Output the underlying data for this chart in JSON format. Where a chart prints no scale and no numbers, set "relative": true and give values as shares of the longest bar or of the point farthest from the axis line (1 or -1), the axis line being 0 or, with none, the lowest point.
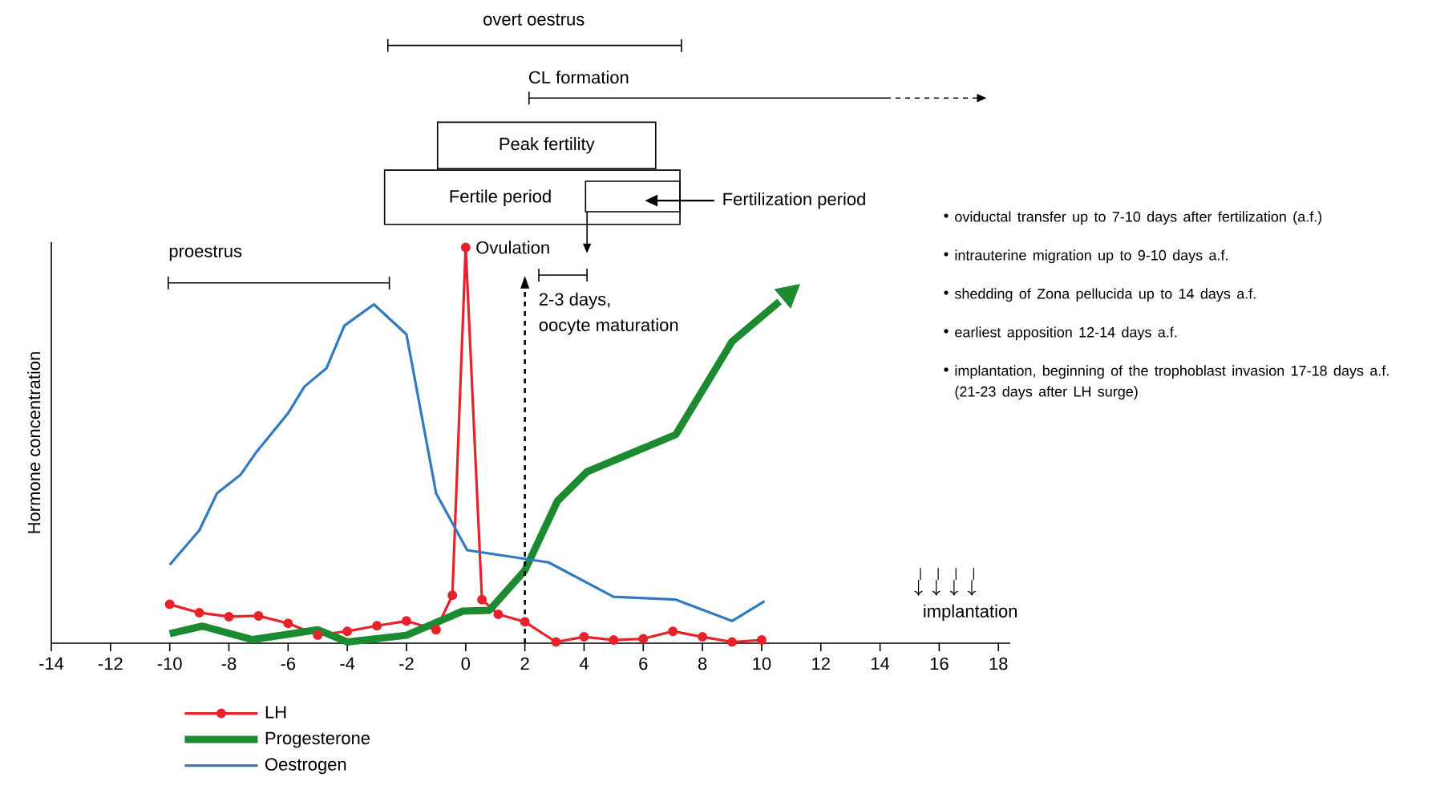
{
  "chart_data": {
    "type": "line",
    "relative": true,
    "ylabel": "Hormone concentration",
    "xlim": [
      -14,
      18.4
    ],
    "xticks": [
      -14,
      -12,
      -10,
      -8,
      -6,
      -4,
      -2,
      0,
      2,
      4,
      6,
      8,
      10,
      12,
      14,
      16,
      18
    ],
    "legend": "bottom",
    "grid": false,
    "series": [
      {
        "name": "LH",
        "color": "#e8222a",
        "marker": "circle",
        "x": [
          -10,
          -9,
          -8,
          -7,
          -6,
          -5,
          -4,
          -3,
          -2,
          -1,
          -0.45,
          0,
          0.55,
          1.1,
          2,
          3.05,
          4,
          5,
          6,
          7,
          8,
          9,
          10
        ],
        "values": [
          0.098,
          0.077,
          0.067,
          0.069,
          0.05,
          0.02,
          0.03,
          0.044,
          0.056,
          0.034,
          0.121,
          1,
          0.11,
          0.073,
          0.054,
          0.003,
          0.016,
          0.008,
          0.011,
          0.03,
          0.016,
          0.003,
          0.008
        ]
      },
      {
        "name": "Progesterone",
        "color": "#1b8a30",
        "marker": "none",
        "x": [
          -10,
          -8.9,
          -7.2,
          -5,
          -4,
          -2,
          -0.1,
          0.8,
          2,
          3.1,
          4.1,
          7.1,
          9,
          10.6
        ],
        "values": [
          0.024,
          0.043,
          0.009,
          0.034,
          0.003,
          0.02,
          0.081,
          0.083,
          0.184,
          0.359,
          0.433,
          0.527,
          0.762,
          0.863
        ]
      },
      {
        "name": "Oestrogen",
        "color": "#2f7ac0",
        "marker": "none",
        "x": [
          -10,
          -9,
          -8.4,
          -7.6,
          -7.1,
          -6,
          -5.45,
          -4.7,
          -4.1,
          -3.1,
          -2,
          -1,
          0.05,
          2.8,
          5,
          7.1,
          9,
          10.1
        ],
        "values": [
          0.198,
          0.285,
          0.379,
          0.426,
          0.48,
          0.581,
          0.648,
          0.695,
          0.802,
          0.856,
          0.78,
          0.379,
          0.235,
          0.204,
          0.117,
          0.11,
          0.056,
          0.106
        ]
      }
    ],
    "ref_lines": [
      {
        "axis": "x",
        "value": 2,
        "line_style": "dashed"
      }
    ],
    "annotations": [
      "proestrus",
      "overt oestrus",
      "CL formation",
      "Peak fertility",
      "Fertile period",
      "Fertilization period",
      {
        "text": "Ovulation",
        "x": 0,
        "y": 1
      },
      "2-3 days,",
      "oviductal transfer up to 7-10 days after fertilization (a.f.)",
      "intrauterine migration up to 9-10 days a.f.",
      "shedding of Zona pellucida up to 14 days a.f.",
      "earliest apposition 12-14 days a.f.",
      "implantation, beginning of the trophoblast invasion  17-18 days a.f. (21-23 days after LH surge)",
      "implantation",
      "oocyte maturation"
    ]
  }
}
